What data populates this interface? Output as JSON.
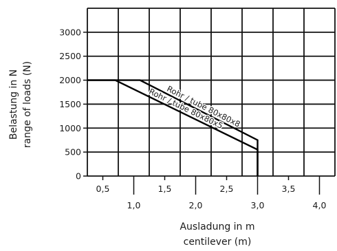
{
  "chart_data": {
    "type": "line",
    "ylabel_lines": [
      "Belastung in N",
      "range of loads (N)"
    ],
    "xlabel_lines": [
      "Ausladung in m",
      "centilever (m)"
    ],
    "xlim": [
      0.25,
      4.25
    ],
    "ylim": [
      0,
      3500
    ],
    "grid": true,
    "x_ticks_upper": [
      "0,5",
      "1,5",
      "2,5",
      "3,5"
    ],
    "x_ticks_lower": [
      "1,0",
      "2,0",
      "3,0",
      "4,0"
    ],
    "y_ticks": [
      "0",
      "500",
      "1000",
      "1500",
      "2000",
      "2500",
      "3000"
    ],
    "series": [
      {
        "name": "Rohr / tube 80x80x8",
        "x": [
          0.25,
          1.1,
          3.0,
          3.0
        ],
        "y": [
          2000,
          2000,
          750,
          0
        ]
      },
      {
        "name": "Rohr / tube 80x80x5",
        "x": [
          0.25,
          0.7,
          3.0,
          3.0
        ],
        "y": [
          2000,
          2000,
          550,
          0
        ]
      }
    ]
  }
}
